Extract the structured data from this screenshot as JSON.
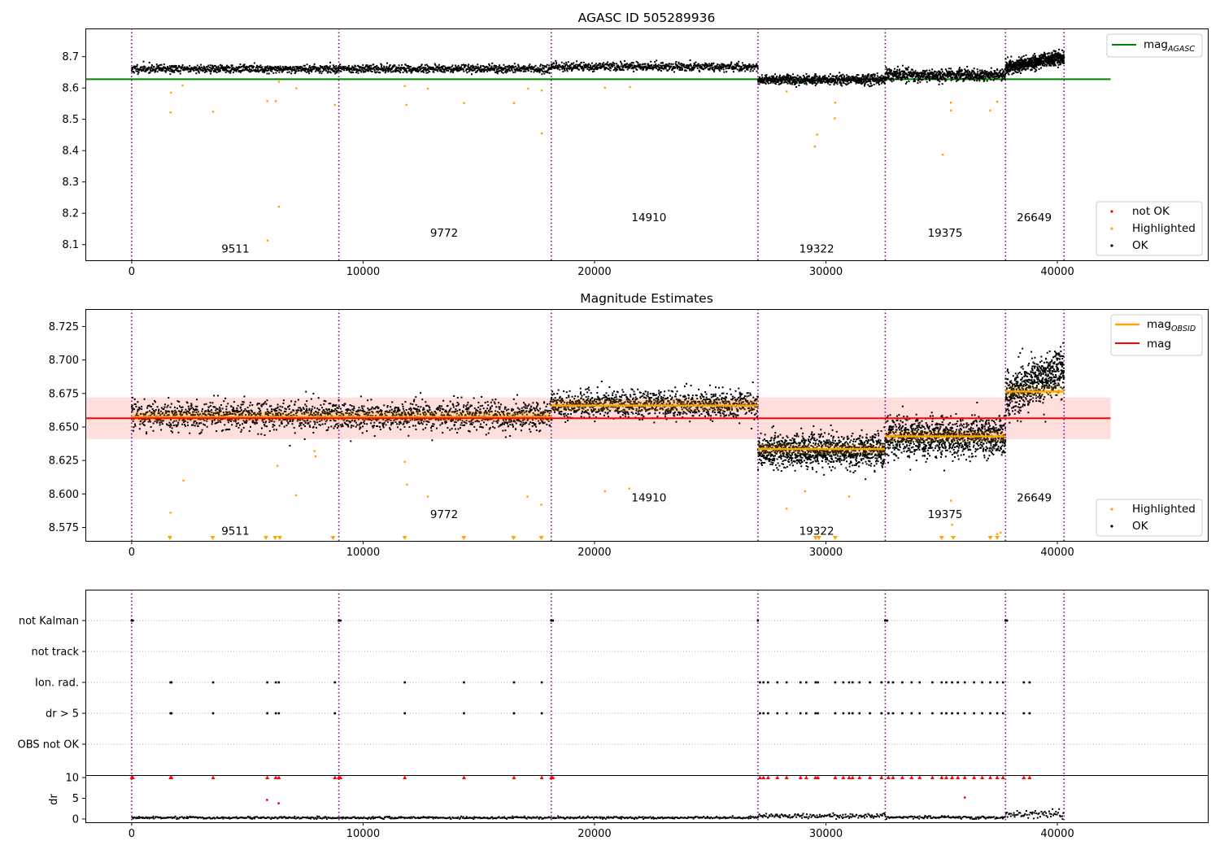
{
  "chart_data": [
    {
      "type": "scatter",
      "title": "AGASC ID 505289936",
      "xlim": [
        -2000,
        46500
      ],
      "ylim": [
        8.05,
        8.79
      ],
      "xticks": [
        0,
        10000,
        20000,
        30000,
        40000
      ],
      "yticks": [
        8.1,
        8.2,
        8.3,
        8.4,
        8.5,
        8.6,
        8.7
      ],
      "ytick_labels": [
        "8.1",
        "8.2",
        "8.3",
        "8.4",
        "8.5",
        "8.6",
        "8.7"
      ],
      "obs_boundaries": [
        0,
        8950,
        18130,
        27060,
        32560,
        37760,
        40290
      ],
      "segment_annotations": [
        {
          "text": "9511",
          "x": 4480,
          "y": 8.075
        },
        {
          "text": "9772",
          "x": 13500,
          "y": 8.125
        },
        {
          "text": "14910",
          "x": 22350,
          "y": 8.175
        },
        {
          "text": "19322",
          "x": 29600,
          "y": 8.075
        },
        {
          "text": "19375",
          "x": 35150,
          "y": 8.125
        },
        {
          "text": "26649",
          "x": 39000,
          "y": 8.175
        }
      ],
      "reference_line": {
        "name": "mag",
        "subscript": "AGASC",
        "value": 8.628,
        "x_range": [
          -2000,
          42300
        ],
        "color": "#008000"
      },
      "segments": [
        {
          "x0": 0,
          "x1": 8950,
          "mean": 8.661,
          "spread": 0.012
        },
        {
          "x0": 8950,
          "x1": 18130,
          "mean": 8.661,
          "spread": 0.012
        },
        {
          "x0": 18130,
          "x1": 27060,
          "mean": 8.668,
          "spread": 0.012
        },
        {
          "x0": 27060,
          "x1": 32560,
          "mean": 8.626,
          "spread": 0.014
        },
        {
          "x0": 32560,
          "x1": 37760,
          "mean": 8.641,
          "spread": 0.017
        },
        {
          "x0": 37760,
          "x1": 40290,
          "mean": 8.677,
          "spread": 0.02
        }
      ],
      "highlighted_outliers": [
        {
          "x": 1680,
          "y": 8.522
        },
        {
          "x": 1700,
          "y": 8.585
        },
        {
          "x": 2200,
          "y": 8.608
        },
        {
          "x": 3520,
          "y": 8.524
        },
        {
          "x": 5860,
          "y": 8.558
        },
        {
          "x": 5870,
          "y": 8.113
        },
        {
          "x": 6230,
          "y": 8.558
        },
        {
          "x": 6360,
          "y": 8.221
        },
        {
          "x": 6360,
          "y": 8.62
        },
        {
          "x": 7120,
          "y": 8.599
        },
        {
          "x": 8780,
          "y": 8.546
        },
        {
          "x": 11800,
          "y": 8.606
        },
        {
          "x": 11870,
          "y": 8.546
        },
        {
          "x": 12800,
          "y": 8.598
        },
        {
          "x": 14360,
          "y": 8.552
        },
        {
          "x": 16520,
          "y": 8.552
        },
        {
          "x": 17130,
          "y": 8.598
        },
        {
          "x": 17720,
          "y": 8.592
        },
        {
          "x": 17720,
          "y": 8.455
        },
        {
          "x": 20450,
          "y": 8.601
        },
        {
          "x": 21530,
          "y": 8.603
        },
        {
          "x": 28300,
          "y": 8.589
        },
        {
          "x": 29520,
          "y": 8.413
        },
        {
          "x": 29620,
          "y": 8.451
        },
        {
          "x": 30380,
          "y": 8.503
        },
        {
          "x": 30400,
          "y": 8.553
        },
        {
          "x": 35050,
          "y": 8.387
        },
        {
          "x": 35400,
          "y": 8.528
        },
        {
          "x": 35400,
          "y": 8.553
        },
        {
          "x": 37100,
          "y": 8.528
        },
        {
          "x": 37400,
          "y": 8.556
        }
      ],
      "legend": {
        "entries": [
          {
            "label": "not OK",
            "color": "#ff0000"
          },
          {
            "label": "Highlighted",
            "color": "#ffa500"
          },
          {
            "label": "OK",
            "color": "#000000"
          }
        ],
        "placement": "lower-right"
      },
      "ref_legend_placement": "upper-right"
    },
    {
      "type": "scatter",
      "title": "Magnitude Estimates",
      "xlim": [
        -2000,
        46500
      ],
      "ylim": [
        8.565,
        8.738
      ],
      "xticks": [
        0,
        10000,
        20000,
        30000,
        40000
      ],
      "yticks": [
        8.575,
        8.6,
        8.625,
        8.65,
        8.675,
        8.7,
        8.725
      ],
      "ytick_labels": [
        "8.575",
        "8.600",
        "8.625",
        "8.650",
        "8.675",
        "8.700",
        "8.725"
      ],
      "obs_boundaries": [
        0,
        8950,
        18130,
        27060,
        32560,
        37760,
        40290
      ],
      "segment_annotations": [
        {
          "text": "9511",
          "x": 4480,
          "y": 8.5695
        },
        {
          "text": "9772",
          "x": 13500,
          "y": 8.582
        },
        {
          "text": "14910",
          "x": 22350,
          "y": 8.5945
        },
        {
          "text": "19322",
          "x": 29600,
          "y": 8.5695
        },
        {
          "text": "19375",
          "x": 35150,
          "y": 8.582
        },
        {
          "text": "26649",
          "x": 39000,
          "y": 8.5945
        }
      ],
      "overall_mag": {
        "name": "mag",
        "value": 8.6565,
        "band": [
          8.641,
          8.672
        ],
        "x_range": [
          -2000,
          42300
        ],
        "color": "#ff0000"
      },
      "obsid_mag": {
        "name": "mag",
        "subscript": "OBSID",
        "color": "#ffa500"
      },
      "segments": [
        {
          "x0": 0,
          "x1": 18130,
          "mag_obsid": 8.6575,
          "mean": 8.6585,
          "spread": 0.0095
        },
        {
          "x0": 18130,
          "x1": 27060,
          "mag_obsid": 8.666,
          "mean": 8.667,
          "spread": 0.0095
        },
        {
          "x0": 27060,
          "x1": 32560,
          "mag_obsid": 8.6335,
          "mean": 8.6325,
          "spread": 0.011
        },
        {
          "x0": 32560,
          "x1": 37760,
          "mag_obsid": 8.643,
          "mean": 8.6425,
          "spread": 0.013
        },
        {
          "x0": 37760,
          "x1": 40290,
          "mag_obsid": 8.6765,
          "mean": 8.6795,
          "spread": 0.016
        }
      ],
      "highlighted_outliers": [
        {
          "x": 1680,
          "y": 8.586
        },
        {
          "x": 2240,
          "y": 8.61
        },
        {
          "x": 6300,
          "y": 8.621
        },
        {
          "x": 7100,
          "y": 8.599
        },
        {
          "x": 7900,
          "y": 8.632
        },
        {
          "x": 7950,
          "y": 8.628
        },
        {
          "x": 11800,
          "y": 8.624
        },
        {
          "x": 11900,
          "y": 8.607
        },
        {
          "x": 12800,
          "y": 8.598
        },
        {
          "x": 17100,
          "y": 8.598
        },
        {
          "x": 17700,
          "y": 8.592
        },
        {
          "x": 20450,
          "y": 8.602
        },
        {
          "x": 21500,
          "y": 8.604
        },
        {
          "x": 28300,
          "y": 8.589
        },
        {
          "x": 29100,
          "y": 8.602
        },
        {
          "x": 31000,
          "y": 8.598
        },
        {
          "x": 35400,
          "y": 8.595
        },
        {
          "x": 35450,
          "y": 8.577
        },
        {
          "x": 37400,
          "y": 8.57
        },
        {
          "x": 37550,
          "y": 8.571
        }
      ],
      "clipped_markers_x": [
        1650,
        3500,
        5800,
        6200,
        6400,
        8700,
        11800,
        14350,
        16500,
        17700,
        29550,
        29700,
        30400,
        35000,
        35500,
        37100,
        37400
      ],
      "legend": {
        "entries": [
          {
            "label": "Highlighted",
            "color": "#ffa500"
          },
          {
            "label": "OK",
            "color": "#000000"
          }
        ],
        "placement": "lower-right"
      },
      "mag_legend_placement": "upper-right"
    },
    {
      "type": "scatter",
      "title": "",
      "xlim": [
        -2000,
        46500
      ],
      "categories": [
        "not Kalman",
        "not track",
        "Ion. rad.",
        "dr > 5",
        "OBS not OK"
      ],
      "obs_boundaries": [
        0,
        8950,
        18130,
        27060,
        32560,
        37760,
        40290
      ],
      "flags": {
        "not Kalman": [
          0,
          50,
          8950,
          9020,
          18130,
          18200,
          27060,
          32560,
          32640,
          37760,
          37820
        ],
        "not track": [],
        "Ion. rad.": [
          1680,
          1720,
          3520,
          5860,
          6230,
          6360,
          8780,
          11800,
          14360,
          16520,
          17720,
          27150,
          27300,
          27500,
          27900,
          28300,
          28900,
          29150,
          29550,
          29650,
          30400,
          30750,
          31000,
          31150,
          31450,
          31900,
          32400,
          32700,
          32900,
          33300,
          33700,
          34050,
          34600,
          35000,
          35200,
          35450,
          35700,
          36000,
          36400,
          36750,
          37100,
          37400,
          37650,
          38550,
          38800
        ],
        "dr > 5": [
          1680,
          1720,
          3520,
          5860,
          6230,
          6360,
          8780,
          11800,
          14360,
          16520,
          17720,
          27150,
          27300,
          27500,
          27900,
          28300,
          28900,
          29150,
          29550,
          29650,
          30400,
          30750,
          31000,
          31150,
          31450,
          31900,
          32400,
          32700,
          32900,
          33300,
          33700,
          34050,
          34600,
          35000,
          35200,
          35450,
          35700,
          36000,
          36400,
          36750,
          37100,
          37400,
          37650,
          38550,
          38800
        ],
        "OBS not OK": []
      }
    },
    {
      "type": "scatter",
      "title": "",
      "ylabel": "dr",
      "xlim": [
        -2000,
        46500
      ],
      "ylim": [
        -0.8,
        10.6
      ],
      "xticks": [
        0,
        10000,
        20000,
        30000,
        40000
      ],
      "yticks": [
        0,
        5,
        10
      ],
      "ytick_labels": [
        "0",
        "5",
        "10"
      ],
      "obs_boundaries": [
        0,
        8950,
        18130,
        27060,
        32560,
        37760,
        40290
      ],
      "segments": [
        {
          "x0": 0,
          "x1": 27060,
          "mean": 0.3
        },
        {
          "x0": 27060,
          "x1": 32560,
          "mean": 0.7
        },
        {
          "x0": 32560,
          "x1": 37760,
          "mean": 0.4
        },
        {
          "x0": 37760,
          "x1": 40290,
          "mean": 1.2
        }
      ],
      "clipped_red_x": [
        0,
        50,
        1680,
        1720,
        3520,
        5860,
        6230,
        6360,
        8780,
        8950,
        9020,
        11800,
        14360,
        16520,
        17720,
        18130,
        18200,
        27150,
        27300,
        27500,
        27900,
        28300,
        28900,
        29150,
        29550,
        29650,
        30400,
        30750,
        31000,
        31150,
        31450,
        31900,
        32400,
        32700,
        32900,
        33300,
        33700,
        34050,
        34600,
        35000,
        35200,
        35450,
        35700,
        36000,
        36400,
        36750,
        37100,
        37400,
        37650,
        38550,
        38800
      ],
      "red_points": [
        {
          "x": 5850,
          "y": 4.6
        },
        {
          "x": 6350,
          "y": 3.8
        },
        {
          "x": 36000,
          "y": 5.2
        }
      ]
    }
  ]
}
